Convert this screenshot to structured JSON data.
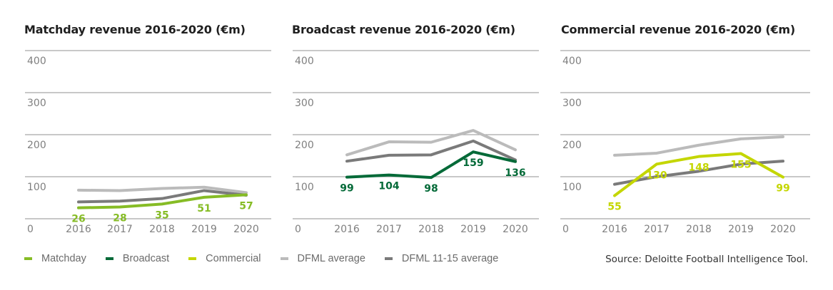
{
  "colors": {
    "matchday": "#86bc25",
    "broadcast": "#046a38",
    "commercial": "#c4d600",
    "dfml_average": "#bbbbbb",
    "dfml_11_15_average": "#7a7a7a",
    "grid": "#a8a8a8",
    "tick": "#7f7f7f"
  },
  "legend": {
    "items": [
      {
        "label": "Matchday",
        "color_key": "matchday"
      },
      {
        "label": "Broadcast",
        "color_key": "broadcast"
      },
      {
        "label": "Commercial",
        "color_key": "commercial"
      },
      {
        "label": "DFML average",
        "color_key": "dfml_average"
      },
      {
        "label": "DFML 11-15 average",
        "color_key": "dfml_11_15_average"
      }
    ]
  },
  "source": "Source: Deloitte Football Intelligence Tool.",
  "chart_data": [
    {
      "type": "line",
      "title": "Matchday revenue 2016-2020 (€m)",
      "xlabel": "",
      "ylabel": "",
      "x": [
        "2016",
        "2017",
        "2018",
        "2019",
        "2020"
      ],
      "ylim": [
        0,
        400
      ],
      "yticks": [
        "0",
        "100",
        "200",
        "300",
        "400"
      ],
      "grid": true,
      "series": [
        {
          "name": "DFML average",
          "color_key": "dfml_average",
          "values": [
            68,
            67,
            72,
            75,
            62
          ],
          "labels": false
        },
        {
          "name": "DFML 11-15 average",
          "color_key": "dfml_11_15_average",
          "values": [
            40,
            42,
            48,
            67,
            56
          ],
          "labels": false
        },
        {
          "name": "Matchday",
          "color_key": "matchday",
          "values": [
            26,
            28,
            35,
            51,
            57
          ],
          "labels": true
        }
      ]
    },
    {
      "type": "line",
      "title": "Broadcast revenue 2016-2020 (€m)",
      "xlabel": "",
      "ylabel": "",
      "x": [
        "2016",
        "2017",
        "2018",
        "2019",
        "2020"
      ],
      "ylim": [
        0,
        400
      ],
      "yticks": [
        "0",
        "100",
        "200",
        "300",
        "400"
      ],
      "grid": true,
      "series": [
        {
          "name": "DFML average",
          "color_key": "dfml_average",
          "values": [
            152,
            183,
            182,
            210,
            164
          ],
          "labels": false
        },
        {
          "name": "DFML 11-15 average",
          "color_key": "dfml_11_15_average",
          "values": [
            137,
            151,
            152,
            185,
            140
          ],
          "labels": false
        },
        {
          "name": "Broadcast",
          "color_key": "broadcast",
          "values": [
            99,
            104,
            98,
            159,
            136
          ],
          "labels": true
        }
      ]
    },
    {
      "type": "line",
      "title": "Commercial revenue 2016-2020 (€m)",
      "xlabel": "",
      "ylabel": "",
      "x": [
        "2016",
        "2017",
        "2018",
        "2019",
        "2020"
      ],
      "ylim": [
        0,
        400
      ],
      "yticks": [
        "0",
        "100",
        "200",
        "300",
        "400"
      ],
      "grid": true,
      "series": [
        {
          "name": "DFML average",
          "color_key": "dfml_average",
          "values": [
            151,
            156,
            175,
            190,
            195
          ],
          "labels": false
        },
        {
          "name": "DFML 11-15 average",
          "color_key": "dfml_11_15_average",
          "values": [
            82,
            100,
            113,
            130,
            137
          ],
          "labels": false
        },
        {
          "name": "Commercial",
          "color_key": "commercial",
          "values": [
            55,
            130,
            148,
            155,
            99
          ],
          "labels": true
        }
      ]
    }
  ]
}
